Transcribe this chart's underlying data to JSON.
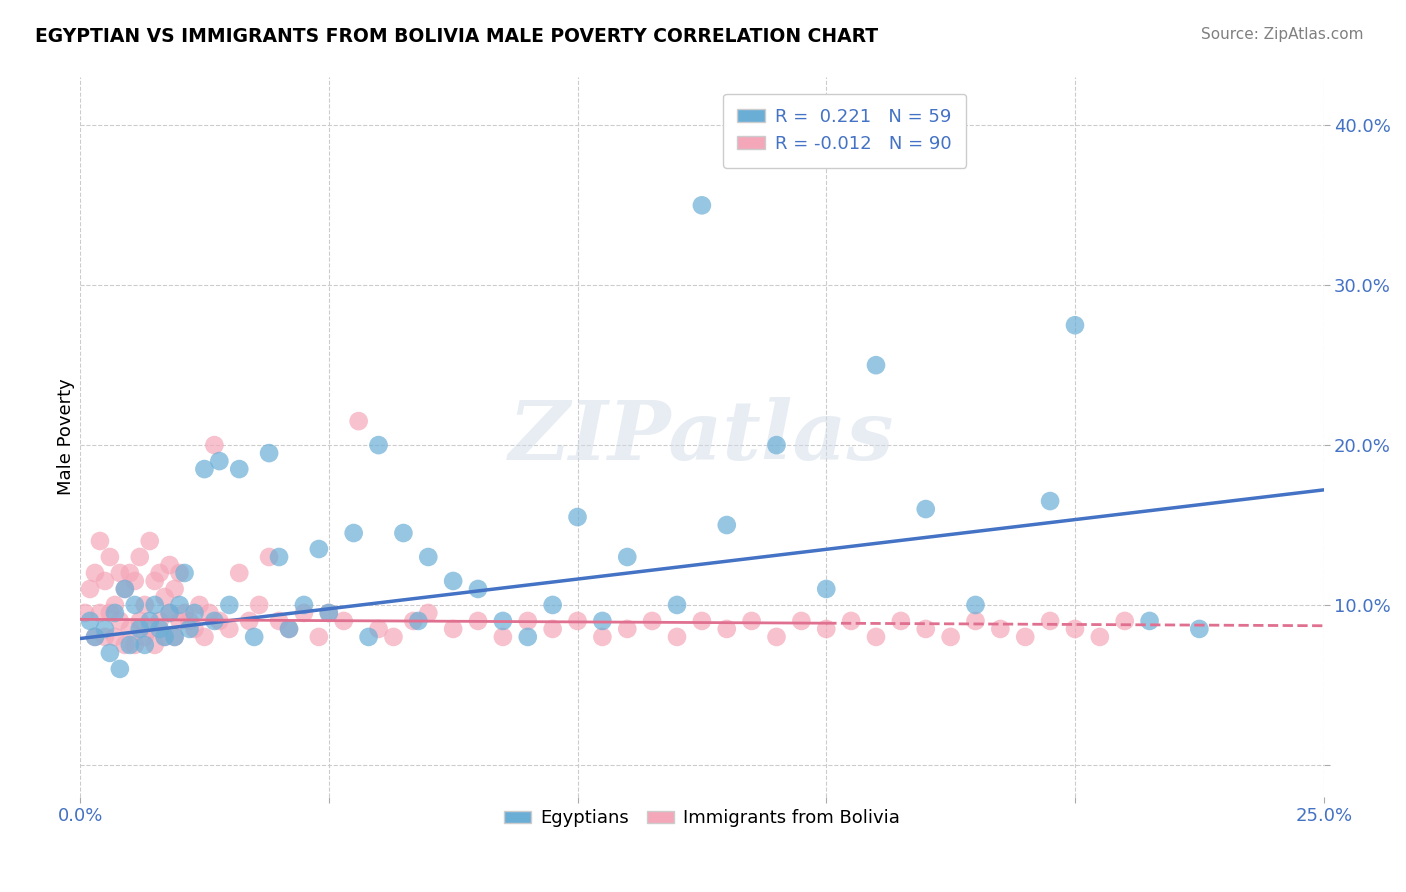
{
  "title": "EGYPTIAN VS IMMIGRANTS FROM BOLIVIA MALE POVERTY CORRELATION CHART",
  "source": "Source: ZipAtlas.com",
  "ylabel": "Male Poverty",
  "xmin": 0.0,
  "xmax": 0.25,
  "ymin": -0.02,
  "ymax": 0.43,
  "yticks": [
    0.0,
    0.1,
    0.2,
    0.3,
    0.4
  ],
  "ytick_labels": [
    "",
    "10.0%",
    "20.0%",
    "30.0%",
    "40.0%"
  ],
  "xticks": [
    0.0,
    0.05,
    0.1,
    0.15,
    0.2,
    0.25
  ],
  "xtick_labels": [
    "0.0%",
    "",
    "",
    "",
    "",
    "25.0%"
  ],
  "grid_color": "#cccccc",
  "watermark": "ZIPatlas",
  "blue_color": "#6aaed6",
  "pink_color": "#f4a7b9",
  "blue_line_color": "#4472c4",
  "pink_line_color": "#e07090",
  "blue_line_start_y": 0.079,
  "blue_line_end_y": 0.172,
  "pink_line_start_y": 0.091,
  "pink_line_end_y": 0.087,
  "eg_x": [
    0.002,
    0.003,
    0.005,
    0.006,
    0.007,
    0.008,
    0.009,
    0.01,
    0.011,
    0.012,
    0.013,
    0.014,
    0.015,
    0.016,
    0.017,
    0.018,
    0.019,
    0.02,
    0.021,
    0.022,
    0.023,
    0.025,
    0.027,
    0.028,
    0.03,
    0.032,
    0.035,
    0.038,
    0.04,
    0.042,
    0.045,
    0.048,
    0.05,
    0.055,
    0.058,
    0.06,
    0.065,
    0.068,
    0.07,
    0.075,
    0.08,
    0.085,
    0.09,
    0.095,
    0.1,
    0.105,
    0.11,
    0.12,
    0.13,
    0.14,
    0.15,
    0.17,
    0.18,
    0.195,
    0.2,
    0.215,
    0.225,
    0.125,
    0.16
  ],
  "eg_y": [
    0.09,
    0.08,
    0.085,
    0.07,
    0.095,
    0.06,
    0.11,
    0.075,
    0.1,
    0.085,
    0.075,
    0.09,
    0.1,
    0.085,
    0.08,
    0.095,
    0.08,
    0.1,
    0.12,
    0.085,
    0.095,
    0.185,
    0.09,
    0.19,
    0.1,
    0.185,
    0.08,
    0.195,
    0.13,
    0.085,
    0.1,
    0.135,
    0.095,
    0.145,
    0.08,
    0.2,
    0.145,
    0.09,
    0.13,
    0.115,
    0.11,
    0.09,
    0.08,
    0.1,
    0.155,
    0.09,
    0.13,
    0.1,
    0.15,
    0.2,
    0.11,
    0.16,
    0.1,
    0.165,
    0.275,
    0.09,
    0.085,
    0.35,
    0.25
  ],
  "bo_x": [
    0.001,
    0.002,
    0.003,
    0.003,
    0.004,
    0.004,
    0.005,
    0.005,
    0.006,
    0.006,
    0.007,
    0.007,
    0.008,
    0.008,
    0.009,
    0.009,
    0.01,
    0.01,
    0.011,
    0.011,
    0.012,
    0.012,
    0.013,
    0.013,
    0.014,
    0.014,
    0.015,
    0.015,
    0.016,
    0.016,
    0.017,
    0.017,
    0.018,
    0.018,
    0.019,
    0.019,
    0.02,
    0.02,
    0.021,
    0.022,
    0.023,
    0.024,
    0.025,
    0.026,
    0.027,
    0.028,
    0.03,
    0.032,
    0.034,
    0.036,
    0.038,
    0.04,
    0.042,
    0.045,
    0.048,
    0.05,
    0.053,
    0.056,
    0.06,
    0.063,
    0.067,
    0.07,
    0.075,
    0.08,
    0.085,
    0.09,
    0.095,
    0.1,
    0.105,
    0.11,
    0.115,
    0.12,
    0.125,
    0.13,
    0.135,
    0.14,
    0.145,
    0.15,
    0.155,
    0.16,
    0.165,
    0.17,
    0.175,
    0.18,
    0.185,
    0.19,
    0.195,
    0.2,
    0.205,
    0.21
  ],
  "bo_y": [
    0.095,
    0.11,
    0.08,
    0.12,
    0.095,
    0.14,
    0.08,
    0.115,
    0.095,
    0.13,
    0.08,
    0.1,
    0.09,
    0.12,
    0.075,
    0.11,
    0.085,
    0.12,
    0.075,
    0.115,
    0.09,
    0.13,
    0.08,
    0.1,
    0.085,
    0.14,
    0.075,
    0.115,
    0.09,
    0.12,
    0.08,
    0.105,
    0.095,
    0.125,
    0.08,
    0.11,
    0.09,
    0.12,
    0.095,
    0.09,
    0.085,
    0.1,
    0.08,
    0.095,
    0.2,
    0.09,
    0.085,
    0.12,
    0.09,
    0.1,
    0.13,
    0.09,
    0.085,
    0.095,
    0.08,
    0.095,
    0.09,
    0.215,
    0.085,
    0.08,
    0.09,
    0.095,
    0.085,
    0.09,
    0.08,
    0.09,
    0.085,
    0.09,
    0.08,
    0.085,
    0.09,
    0.08,
    0.09,
    0.085,
    0.09,
    0.08,
    0.09,
    0.085,
    0.09,
    0.08,
    0.09,
    0.085,
    0.08,
    0.09,
    0.085,
    0.08,
    0.09,
    0.085,
    0.08,
    0.09
  ]
}
